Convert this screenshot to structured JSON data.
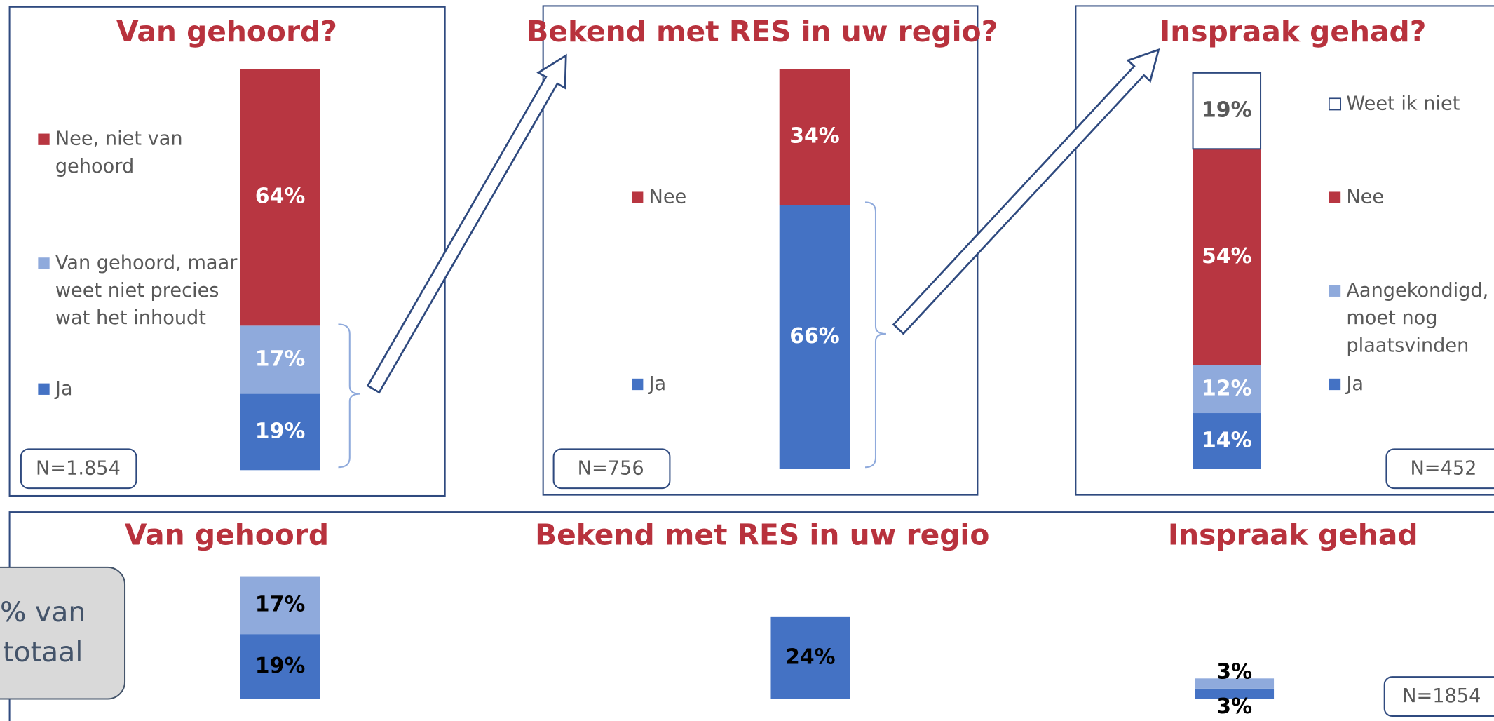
{
  "side_label": [
    "% van",
    "totaal"
  ],
  "chart_data": [
    {
      "type": "stacked-bar",
      "title": "Van gehoord?",
      "ylim": [
        0,
        100
      ],
      "n_label": "N=1.854",
      "series": [
        {
          "name": "Ja",
          "color": "#4472c4",
          "values": [
            19
          ],
          "value_labels": [
            "19%"
          ]
        },
        {
          "name": "Van gehoord, maar weet niet precies wat het inhoudt",
          "color": "#8faadc",
          "values": [
            17
          ],
          "value_labels": [
            "17%"
          ]
        },
        {
          "name": "Nee, niet van gehoord",
          "color": "#b83641",
          "values": [
            64
          ],
          "value_labels": [
            "64%"
          ]
        }
      ]
    },
    {
      "type": "stacked-bar",
      "title": "Bekend met RES in uw regio?",
      "ylim": [
        0,
        100
      ],
      "n_label": "N=756",
      "series": [
        {
          "name": "Ja",
          "color": "#4472c4",
          "values": [
            66
          ],
          "value_labels": [
            "66%"
          ]
        },
        {
          "name": "Nee",
          "color": "#b83641",
          "values": [
            34
          ],
          "value_labels": [
            "34%"
          ]
        }
      ]
    },
    {
      "type": "stacked-bar",
      "title": "Inspraak gehad?",
      "ylim": [
        0,
        100
      ],
      "n_label": "N=452",
      "series": [
        {
          "name": "Ja",
          "color": "#4472c4",
          "values": [
            14
          ],
          "value_labels": [
            "14%"
          ]
        },
        {
          "name": "Aangekondigd, moet nog plaatsvinden",
          "color": "#8faadc",
          "values": [
            12
          ],
          "value_labels": [
            "12%"
          ]
        },
        {
          "name": "Nee",
          "color": "#b83641",
          "values": [
            54
          ],
          "value_labels": [
            "54%"
          ]
        },
        {
          "name": "Weet ik niet",
          "color": "#ffffff",
          "values": [
            19
          ],
          "value_labels": [
            "19%"
          ]
        }
      ]
    },
    {
      "type": "stacked-bar",
      "title": "Van gehoord",
      "ylim": [
        0,
        40
      ],
      "series": [
        {
          "color": "#4472c4",
          "values": [
            19
          ],
          "value_labels": [
            "19%"
          ]
        },
        {
          "color": "#8faadc",
          "values": [
            17
          ],
          "value_labels": [
            "17%"
          ]
        }
      ]
    },
    {
      "type": "stacked-bar",
      "title": "Bekend met RES in uw regio",
      "ylim": [
        0,
        40
      ],
      "series": [
        {
          "color": "#4472c4",
          "values": [
            24
          ],
          "value_labels": [
            "24%"
          ]
        }
      ]
    },
    {
      "type": "stacked-bar",
      "title": "Inspraak gehad",
      "ylim": [
        0,
        40
      ],
      "n_label": "N=1854",
      "series": [
        {
          "color": "#4472c4",
          "values": [
            3
          ],
          "value_labels": [
            "3%"
          ]
        },
        {
          "color": "#8faadc",
          "values": [
            3
          ],
          "value_labels": [
            "3%"
          ]
        }
      ]
    }
  ]
}
